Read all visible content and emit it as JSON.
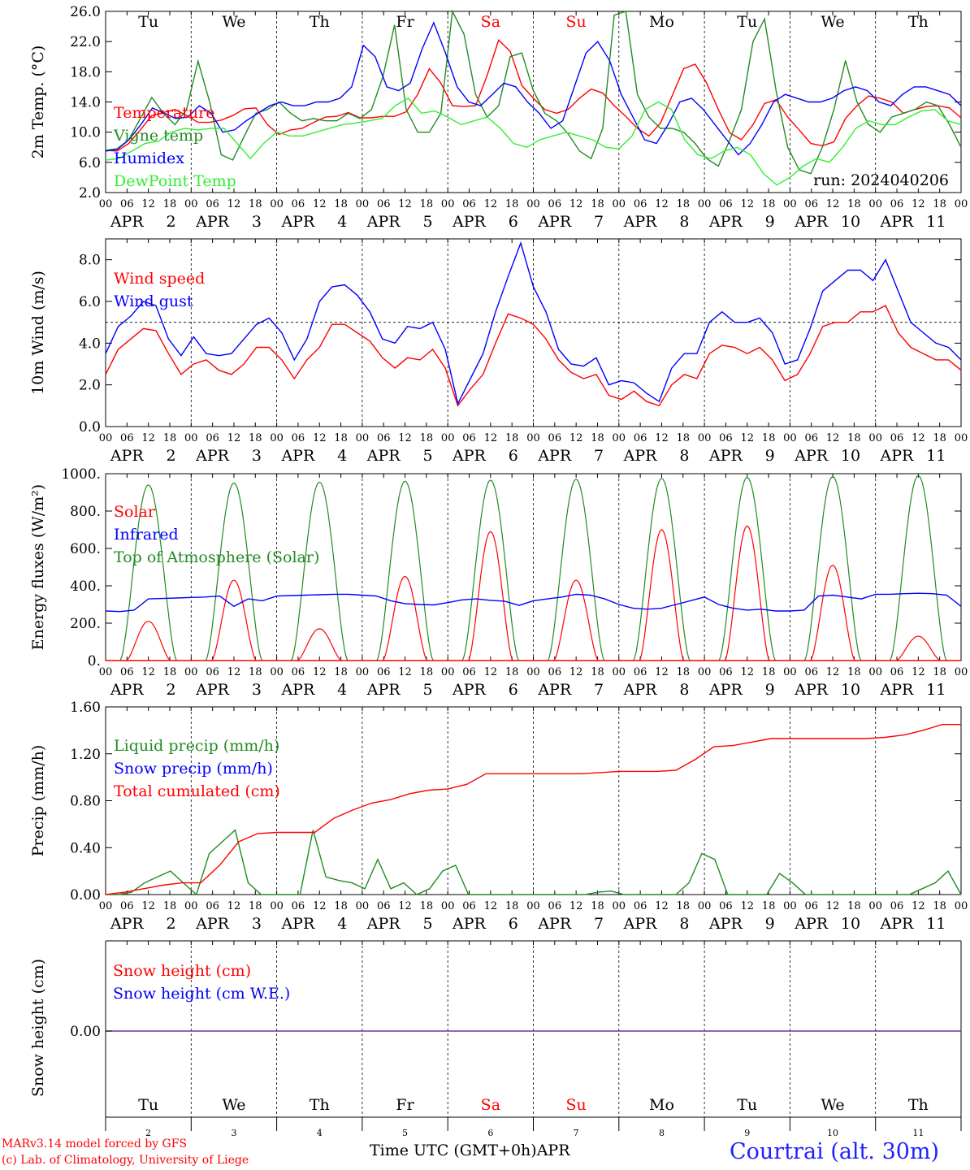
{
  "chart_data": [
    {
      "type": "line",
      "id": "temp",
      "ylabel": "2m Temp. (°C)",
      "ylim": [
        2.0,
        26.0
      ],
      "yticks": [
        "2.0",
        "6.0",
        "10.0",
        "14.0",
        "18.0",
        "22.0",
        "26.0"
      ],
      "day_labels": [
        "Tu",
        "We",
        "Th",
        "Fr",
        "Sa",
        "Su",
        "Mo",
        "Tu",
        "We",
        "Th"
      ],
      "weekend_days": [
        4,
        5
      ],
      "annotation": "run: 2024040206",
      "legend_position": "left",
      "series": [
        {
          "name": "Temperature",
          "color": "#ff0000",
          "values": [
            7.6,
            7.5,
            8.5,
            10.3,
            12.2,
            12.6,
            13.0,
            12.2,
            11.3,
            11.3,
            11.6,
            12.2,
            13.1,
            13.2,
            11.0,
            9.7,
            10.3,
            10.5,
            11.3,
            12.0,
            12.1,
            12.6,
            11.9,
            11.9,
            12.1,
            12.1,
            12.7,
            15.0,
            18.4,
            16.5,
            13.5,
            13.4,
            13.5,
            17.5,
            22.2,
            20.7,
            16.2,
            14.5,
            13.0,
            12.5,
            13.0,
            14.5,
            15.7,
            15.2,
            13.5,
            12.1,
            10.5,
            9.5,
            11.2,
            14.8,
            18.4,
            19.0,
            16.5,
            13.0,
            9.9,
            9.0,
            11.0,
            13.8,
            14.3,
            12.0,
            10.3,
            8.5,
            8.2,
            8.7,
            11.8,
            13.5,
            14.8,
            14.5,
            14.0,
            12.5,
            13.0,
            13.4,
            13.5,
            13.2,
            11.9
          ]
        },
        {
          "name": "Vigne temp",
          "color": "#228b22",
          "values": [
            7.6,
            7.8,
            9.0,
            11.8,
            14.6,
            12.5,
            11.0,
            13.0,
            19.4,
            14.0,
            7.0,
            6.3,
            9.5,
            12.5,
            13.0,
            14.0,
            12.5,
            11.5,
            11.8,
            11.5,
            11.5,
            12.5,
            11.8,
            13.0,
            17.4,
            24.2,
            13.0,
            10.0,
            10.0,
            12.5,
            27.5,
            23.0,
            15.0,
            12.0,
            13.5,
            20.0,
            20.5,
            15.5,
            12.5,
            11.5,
            9.8,
            7.5,
            6.5,
            10.5,
            25.5,
            28.5,
            15.0,
            12.0,
            10.5,
            10.5,
            10.0,
            8.5,
            6.5,
            5.5,
            9.0,
            13.0,
            22.0,
            25.0,
            15.5,
            8.0,
            5.0,
            4.5,
            8.0,
            13.0,
            19.5,
            14.0,
            11.0,
            10.0,
            12.0,
            12.5,
            13.0,
            14.0,
            13.5,
            11.0,
            8.0
          ]
        },
        {
          "name": "Humidex",
          "color": "#0000ff",
          "values": [
            7.5,
            7.7,
            9.0,
            11.0,
            13.2,
            12.5,
            11.8,
            12.0,
            13.5,
            12.5,
            10.0,
            10.3,
            11.5,
            12.5,
            13.5,
            14.0,
            13.5,
            13.5,
            14.0,
            14.0,
            14.5,
            16.0,
            21.5,
            20.0,
            16.0,
            15.5,
            16.5,
            21.0,
            24.5,
            20.5,
            16.0,
            14.0,
            13.5,
            15.0,
            16.5,
            16.0,
            14.0,
            12.5,
            10.5,
            11.5,
            16.0,
            20.5,
            22.0,
            19.5,
            15.0,
            12.0,
            9.0,
            8.5,
            11.0,
            14.0,
            14.5,
            13.0,
            11.0,
            9.0,
            7.0,
            8.5,
            11.0,
            14.0,
            15.0,
            14.5,
            14.0,
            14.0,
            14.5,
            15.5,
            16.0,
            15.5,
            14.0,
            13.5,
            15.0,
            16.0,
            16.0,
            15.5,
            15.0,
            13.5
          ]
        },
        {
          "name": "DewPoint Temp",
          "color": "#33ee33",
          "values": [
            6.3,
            6.5,
            7.5,
            8.5,
            8.8,
            10.0,
            10.5,
            10.3,
            10.5,
            10.5,
            8.5,
            6.5,
            8.5,
            10.0,
            9.5,
            9.5,
            10.0,
            10.5,
            11.0,
            11.2,
            11.5,
            11.8,
            13.5,
            14.5,
            12.5,
            12.8,
            12.0,
            11.0,
            11.5,
            12.0,
            10.5,
            8.5,
            8.0,
            9.0,
            9.5,
            10.0,
            9.5,
            9.0,
            8.0,
            7.8,
            9.5,
            13.0,
            14.0,
            13.0,
            9.0,
            7.0,
            6.5,
            7.5,
            8.0,
            7.0,
            4.5,
            3.0,
            4.0,
            5.5,
            6.5,
            6.0,
            8.0,
            10.5,
            11.5,
            11.0,
            11.0,
            12.0,
            12.8,
            13.0,
            11.5,
            11.0
          ]
        }
      ]
    },
    {
      "type": "line",
      "id": "wind",
      "ylabel": "10m Wind (m/s)",
      "ylim": [
        0.0,
        9.0
      ],
      "yticks": [
        "0.0",
        "2.0",
        "4.0",
        "6.0",
        "8.0"
      ],
      "reference_line": 5.0,
      "legend_position": "left",
      "series": [
        {
          "name": "Wind speed",
          "color": "#ff0000",
          "values": [
            2.5,
            3.7,
            4.2,
            4.7,
            4.6,
            3.5,
            2.5,
            3.0,
            3.2,
            2.7,
            2.5,
            3.0,
            3.8,
            3.8,
            3.2,
            2.3,
            3.2,
            3.8,
            4.9,
            4.9,
            4.5,
            4.1,
            3.3,
            2.8,
            3.3,
            3.2,
            3.7,
            2.8,
            1.0,
            1.8,
            2.5,
            4.0,
            5.4,
            5.2,
            4.9,
            4.2,
            3.2,
            2.6,
            2.3,
            2.5,
            1.5,
            1.3,
            1.7,
            1.2,
            1.0,
            2.0,
            2.5,
            2.3,
            3.5,
            3.9,
            3.8,
            3.5,
            3.8,
            3.2,
            2.2,
            2.5,
            3.5,
            4.8,
            5.0,
            5.0,
            5.5,
            5.5,
            5.8,
            4.5,
            3.8,
            3.5,
            3.2,
            3.2,
            2.7
          ]
        },
        {
          "name": "Wind gust",
          "color": "#0000ff",
          "values": [
            3.5,
            4.8,
            5.3,
            6.0,
            5.8,
            4.2,
            3.4,
            4.3,
            3.5,
            3.4,
            3.5,
            4.2,
            4.9,
            5.2,
            4.5,
            3.2,
            4.2,
            6.0,
            6.7,
            6.8,
            6.3,
            5.5,
            4.2,
            4.0,
            4.8,
            4.7,
            5.0,
            3.7,
            1.1,
            2.3,
            3.5,
            5.5,
            7.2,
            8.8,
            6.7,
            5.5,
            3.7,
            3.0,
            2.9,
            3.3,
            2.0,
            2.2,
            2.1,
            1.6,
            1.2,
            2.8,
            3.5,
            3.5,
            5.0,
            5.5,
            5.0,
            5.0,
            5.2,
            4.5,
            3.0,
            3.2,
            4.7,
            6.5,
            7.0,
            7.5,
            7.5,
            7.0,
            8.0,
            6.5,
            5.0,
            4.5,
            4.0,
            3.8,
            3.2
          ]
        }
      ]
    },
    {
      "type": "line",
      "id": "energy",
      "ylabel": "Energy fluxes (W/m²)",
      "ylim": [
        0,
        1000
      ],
      "yticks": [
        "0.",
        "200.",
        "400.",
        "600.",
        "800.",
        "1000."
      ],
      "legend_position": "left",
      "series": [
        {
          "name": "Solar",
          "color": "#ff0000",
          "peaks": [
            210,
            430,
            170,
            450,
            690,
            430,
            700,
            720,
            510,
            130
          ]
        },
        {
          "name": "Infrared",
          "color": "#0000ff",
          "values": [
            265,
            262,
            270,
            330,
            332,
            335,
            338,
            340,
            345,
            290,
            330,
            320,
            345,
            348,
            350,
            352,
            355,
            355,
            350,
            345,
            320,
            305,
            300,
            298,
            310,
            325,
            330,
            322,
            318,
            295,
            320,
            330,
            340,
            355,
            350,
            330,
            300,
            280,
            275,
            280,
            300,
            320,
            340,
            300,
            280,
            270,
            275,
            265,
            265,
            270,
            345,
            350,
            340,
            330,
            355,
            355,
            358,
            360,
            358,
            350,
            290
          ]
        },
        {
          "name": "Top of Atmosphere (Solar)",
          "color": "#228b22",
          "peaks": [
            940,
            950,
            955,
            960,
            965,
            970,
            975,
            980,
            985,
            990
          ]
        }
      ]
    },
    {
      "type": "line",
      "id": "precip",
      "ylabel": "Precip (mm/h)",
      "ylim": [
        0.0,
        1.6
      ],
      "yticks": [
        "0.00",
        "0.40",
        "0.80",
        "1.20",
        "1.60"
      ],
      "legend_position": "left",
      "series": [
        {
          "name": "Liquid precip (mm/h)",
          "color": "#228b22",
          "values": [
            0,
            0,
            0.02,
            0.1,
            0.15,
            0.2,
            0.1,
            0,
            0.35,
            0.45,
            0.55,
            0.1,
            0,
            0,
            0,
            0,
            0.55,
            0.15,
            0.12,
            0.1,
            0.05,
            0.3,
            0.05,
            0.1,
            0,
            0.05,
            0.2,
            0.25,
            0,
            0,
            0,
            0,
            0,
            0,
            0,
            0,
            0,
            0,
            0.02,
            0.03,
            0,
            0,
            0,
            0,
            0,
            0.1,
            0.35,
            0.3,
            0,
            0,
            0,
            0,
            0.18,
            0.1,
            0,
            0,
            0,
            0,
            0,
            0,
            0,
            0,
            0,
            0.05,
            0.1,
            0.2,
            0
          ]
        },
        {
          "name": "Snow precip (mm/h)",
          "color": "#0000ff",
          "values": []
        },
        {
          "name": "Total cumulated (cm)",
          "color": "#ff0000",
          "values": [
            0,
            0.02,
            0.05,
            0.08,
            0.1,
            0.1,
            0.25,
            0.45,
            0.52,
            0.53,
            0.53,
            0.53,
            0.65,
            0.72,
            0.78,
            0.81,
            0.86,
            0.89,
            0.9,
            0.94,
            1.03,
            1.03,
            1.03,
            1.03,
            1.03,
            1.03,
            1.04,
            1.05,
            1.05,
            1.05,
            1.06,
            1.15,
            1.26,
            1.27,
            1.3,
            1.33,
            1.33,
            1.33,
            1.33,
            1.33,
            1.33,
            1.34,
            1.36,
            1.4,
            1.45,
            1.45
          ]
        }
      ]
    },
    {
      "type": "line",
      "id": "snow",
      "ylabel": "Snow height (cm)",
      "yticks": [
        "0.00"
      ],
      "day_labels": [
        "Tu",
        "We",
        "Th",
        "Fr",
        "Sa",
        "Su",
        "Mo",
        "Tu",
        "We",
        "Th"
      ],
      "day_numbers": [
        "2",
        "3",
        "4",
        "5",
        "6",
        "7",
        "8",
        "9",
        "10",
        "11"
      ],
      "legend_position": "left",
      "series": [
        {
          "name": "Snow height (cm)",
          "color": "#ff0000",
          "values": [
            0,
            0
          ]
        },
        {
          "name": "Snow height (cm W.E.)",
          "color": "#0000ff",
          "values": [
            0,
            0
          ]
        }
      ]
    }
  ],
  "axes": {
    "hour_ticks": [
      "00",
      "06",
      "12",
      "18"
    ],
    "month": "APR",
    "dates": [
      "2",
      "3",
      "4",
      "5",
      "6",
      "7",
      "8",
      "9",
      "10",
      "11"
    ],
    "xlabel": "Time UTC (GMT+0h)",
    "xlabel_month": "APR"
  },
  "footer": {
    "model": "MARv3.14 model forced by GFS",
    "copyright": "(c) Lab. of Climatology, University of Liege",
    "station": "Courtrai (alt. 30m)"
  },
  "colors": {
    "temperature": "#ff0000",
    "vigne": "#228b22",
    "humidex": "#0000ff",
    "dewpoint": "#33ee33",
    "weekend": "#ff0000",
    "zero_line": "#7b2fa0"
  }
}
